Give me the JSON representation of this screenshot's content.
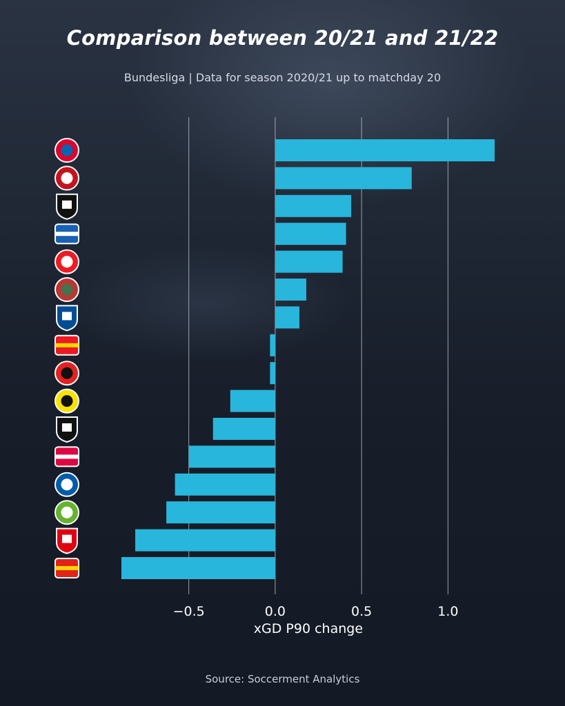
{
  "title": "Comparison between 20/21 and 21/22",
  "subtitle": "Bundesliga | Data for season 2020/21 up to matchday 20",
  "source": "Source: Soccerment Analytics",
  "colors": {
    "bar": "#29b6dc",
    "background": "#151b27",
    "grid": "#c8ccd2",
    "text": "#ffffff"
  },
  "teams": [
    {
      "icon": "bayern-munich-logo",
      "primary": "#dc052d",
      "secondary": "#0066b2"
    },
    {
      "icon": "mainz-logo",
      "primary": "#c3141e",
      "secondary": "#ffffff"
    },
    {
      "icon": "freiburg-logo",
      "primary": "#111111",
      "secondary": "#ffffff"
    },
    {
      "icon": "hoffenheim-logo",
      "primary": "#1961b5",
      "secondary": "#ffffff"
    },
    {
      "icon": "koln-logo",
      "primary": "#ed1c24",
      "secondary": "#ffffff"
    },
    {
      "icon": "augsburg-logo",
      "primary": "#ba3733",
      "secondary": "#46714d"
    },
    {
      "icon": "arminia-bielefeld-logo",
      "primary": "#004e95",
      "secondary": "#ffffff"
    },
    {
      "icon": "union-berlin-logo",
      "primary": "#eb1923",
      "secondary": "#ffd500"
    },
    {
      "icon": "leverkusen-logo",
      "primary": "#e32221",
      "secondary": "#111111"
    },
    {
      "icon": "dortmund-logo",
      "primary": "#fde100",
      "secondary": "#111111"
    },
    {
      "icon": "gladbach-logo",
      "primary": "#111111",
      "secondary": "#ffffff"
    },
    {
      "icon": "rb-leipzig-logo",
      "primary": "#dd0741",
      "secondary": "#ffffff"
    },
    {
      "icon": "hertha-logo",
      "primary": "#005ca9",
      "secondary": "#ffffff"
    },
    {
      "icon": "wolfsburg-logo",
      "primary": "#65b32e",
      "secondary": "#ffffff"
    },
    {
      "icon": "frankfurt-logo",
      "primary": "#e1000f",
      "secondary": "#ffffff"
    },
    {
      "icon": "stuttgart-logo",
      "primary": "#e32219",
      "secondary": "#fcd400"
    }
  ],
  "chart_data": {
    "type": "bar",
    "orientation": "horizontal",
    "xlabel": "xGD P90 change",
    "xlim": [
      -0.89,
      1.29
    ],
    "xticks": [
      -0.5,
      0.0,
      0.5,
      1.0
    ],
    "xtick_labels": [
      "−0.5",
      "0.0",
      "0.5",
      "1.0"
    ],
    "grid": "vertical lines at ticks",
    "values": [
      1.27,
      0.79,
      0.44,
      0.41,
      0.39,
      0.18,
      0.14,
      -0.03,
      -0.03,
      -0.26,
      -0.36,
      -0.5,
      -0.58,
      -0.63,
      -0.81,
      -0.89
    ]
  }
}
